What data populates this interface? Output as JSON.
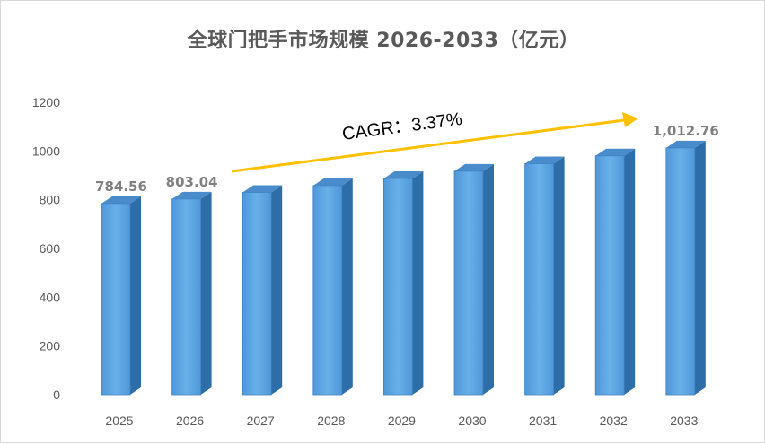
{
  "chart_data": {
    "type": "bar",
    "title": "全球门把手市场规模 2026-2033（亿元）",
    "xlabel": "",
    "ylabel": "",
    "categories": [
      "2025",
      "2026",
      "2027",
      "2028",
      "2029",
      "2030",
      "2031",
      "2032",
      "2033"
    ],
    "values": [
      784.56,
      803.04,
      830,
      858,
      887,
      917,
      948,
      980,
      1012.76
    ],
    "data_labels": [
      "784.56",
      "803.04",
      "",
      "",
      "",
      "",
      "",
      "",
      "1,012.76"
    ],
    "ylim": [
      0,
      1200
    ],
    "yticks": [
      0,
      200,
      400,
      600,
      800,
      1000,
      1200
    ],
    "ytick_labels": [
      "0",
      "200",
      "400",
      "600",
      "800",
      "1000",
      "1200"
    ],
    "grid": false,
    "legend": "none",
    "annotation": {
      "text": "CAGR：3.37%",
      "arrow": "up-right"
    },
    "colors": {
      "bar_front": "#5ba3e0",
      "bar_side": "#2e6ea8",
      "bar_top": "#4a8ccb",
      "arrow": "#ffc000",
      "data_label": "#808080"
    }
  }
}
